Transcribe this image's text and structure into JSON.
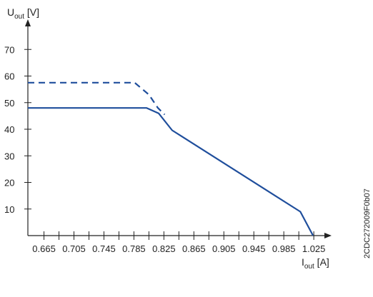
{
  "chart_data": {
    "type": "line",
    "y_axis": {
      "label_main": "U",
      "label_sub": "out",
      "label_unit": " [V]",
      "ylim": [
        0,
        80
      ],
      "ticks": [
        10,
        20,
        30,
        40,
        50,
        60,
        70
      ]
    },
    "x_axis": {
      "label_main": "I",
      "label_sub": "out",
      "label_unit": " [A]",
      "xlim": [
        0.6435,
        1.0325
      ],
      "ticks": [
        0.665,
        0.685,
        0.705,
        0.725,
        0.745,
        0.765,
        0.785,
        0.805,
        0.825,
        0.845,
        0.865,
        0.885,
        0.905,
        0.925,
        0.945,
        0.965,
        0.985,
        1.005,
        1.025
      ],
      "tick_labels": [
        "0.665",
        "0.705",
        "0.745",
        "0.785",
        "0.825",
        "0.865",
        "0.905",
        "0.945",
        "0.985",
        "1.025"
      ]
    },
    "series": [
      {
        "style": "solid",
        "color": "#1f4e9c",
        "x": [
          0.6435,
          0.802,
          0.818,
          0.836,
          1.007,
          1.024
        ],
        "y": [
          48,
          48,
          46,
          39.6,
          9,
          0
        ]
      },
      {
        "style": "dashed",
        "color": "#1f4e9c",
        "x": [
          0.6435,
          0.786,
          0.805,
          0.817,
          0.826
        ],
        "y": [
          57.5,
          57.5,
          53,
          48,
          45.5
        ]
      }
    ],
    "grid": false,
    "reference_code": "2CDC272009F0b07"
  }
}
